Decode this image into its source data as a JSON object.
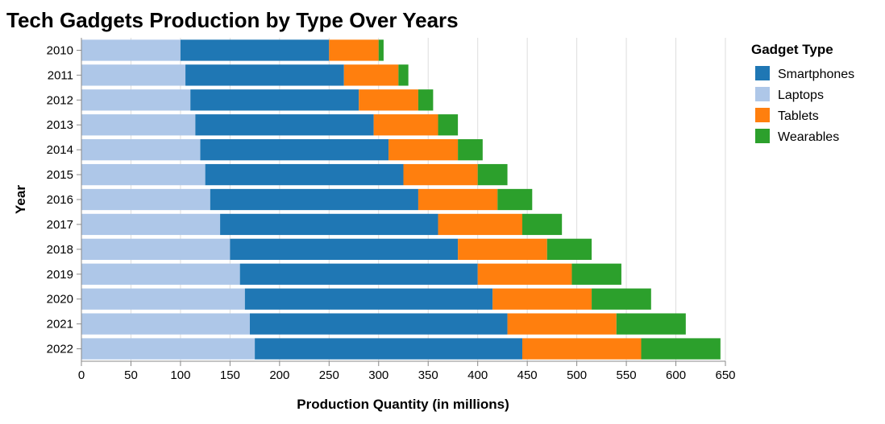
{
  "chart_data": {
    "type": "bar",
    "orientation": "horizontal",
    "stacked": true,
    "title": "Tech Gadgets Production by Type Over Years",
    "xlabel": "Production Quantity (in millions)",
    "ylabel": "Year",
    "xlim": [
      0,
      650
    ],
    "x_ticks": [
      "0",
      "50",
      "100",
      "150",
      "200",
      "250",
      "300",
      "350",
      "400",
      "450",
      "500",
      "550",
      "600",
      "650"
    ],
    "grid": true,
    "categories": [
      "2010",
      "2011",
      "2012",
      "2013",
      "2014",
      "2015",
      "2016",
      "2017",
      "2018",
      "2019",
      "2020",
      "2021",
      "2022"
    ],
    "legend": {
      "title": "Gadget Type",
      "placement": "right",
      "items": [
        "Smartphones",
        "Laptops",
        "Tablets",
        "Wearables"
      ]
    },
    "stack_order": [
      "Laptops",
      "Smartphones",
      "Tablets",
      "Wearables"
    ],
    "series": [
      {
        "name": "Smartphones",
        "color": "#1f77b4",
        "values": [
          150,
          160,
          170,
          180,
          190,
          200,
          210,
          220,
          230,
          240,
          250,
          260,
          270
        ]
      },
      {
        "name": "Laptops",
        "color": "#aec7e8",
        "values": [
          100,
          105,
          110,
          115,
          120,
          125,
          130,
          140,
          150,
          160,
          165,
          170,
          175
        ]
      },
      {
        "name": "Tablets",
        "color": "#ff7f0e",
        "values": [
          50,
          55,
          60,
          65,
          70,
          75,
          80,
          85,
          90,
          95,
          100,
          110,
          120
        ]
      },
      {
        "name": "Wearables",
        "color": "#2ca02c",
        "values": [
          5,
          10,
          15,
          20,
          25,
          30,
          35,
          40,
          45,
          50,
          60,
          70,
          80
        ]
      }
    ]
  }
}
